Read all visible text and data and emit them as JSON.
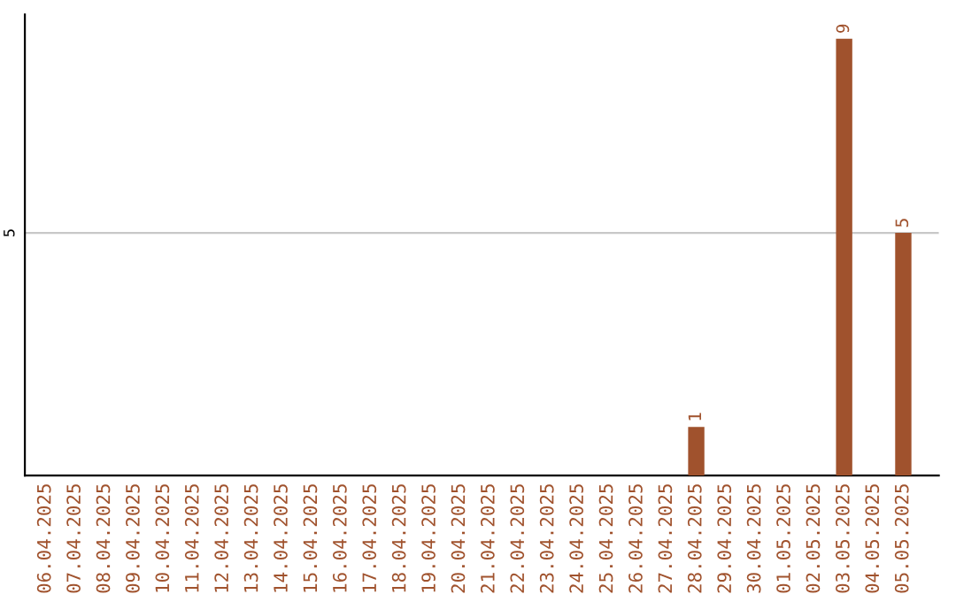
{
  "chart_data": {
    "type": "bar",
    "categories": [
      "06.04.2025",
      "07.04.2025",
      "08.04.2025",
      "09.04.2025",
      "10.04.2025",
      "11.04.2025",
      "12.04.2025",
      "13.04.2025",
      "14.04.2025",
      "15.04.2025",
      "16.04.2025",
      "17.04.2025",
      "18.04.2025",
      "19.04.2025",
      "20.04.2025",
      "21.04.2025",
      "22.04.2025",
      "23.04.2025",
      "24.04.2025",
      "25.04.2025",
      "26.04.2025",
      "27.04.2025",
      "28.04.2025",
      "29.04.2025",
      "30.04.2025",
      "01.05.2025",
      "02.05.2025",
      "03.05.2025",
      "04.05.2025",
      "05.05.2025"
    ],
    "values": [
      null,
      null,
      null,
      null,
      null,
      null,
      null,
      null,
      null,
      null,
      null,
      null,
      null,
      null,
      null,
      null,
      null,
      null,
      null,
      null,
      null,
      null,
      1,
      null,
      null,
      null,
      null,
      9,
      null,
      5
    ],
    "data_labels": true,
    "color": "#a0522d",
    "ylim": [
      0,
      9.5
    ],
    "yticks": [
      {
        "value": 0,
        "label": null
      },
      5
    ],
    "grid": "y",
    "legend": false
  }
}
